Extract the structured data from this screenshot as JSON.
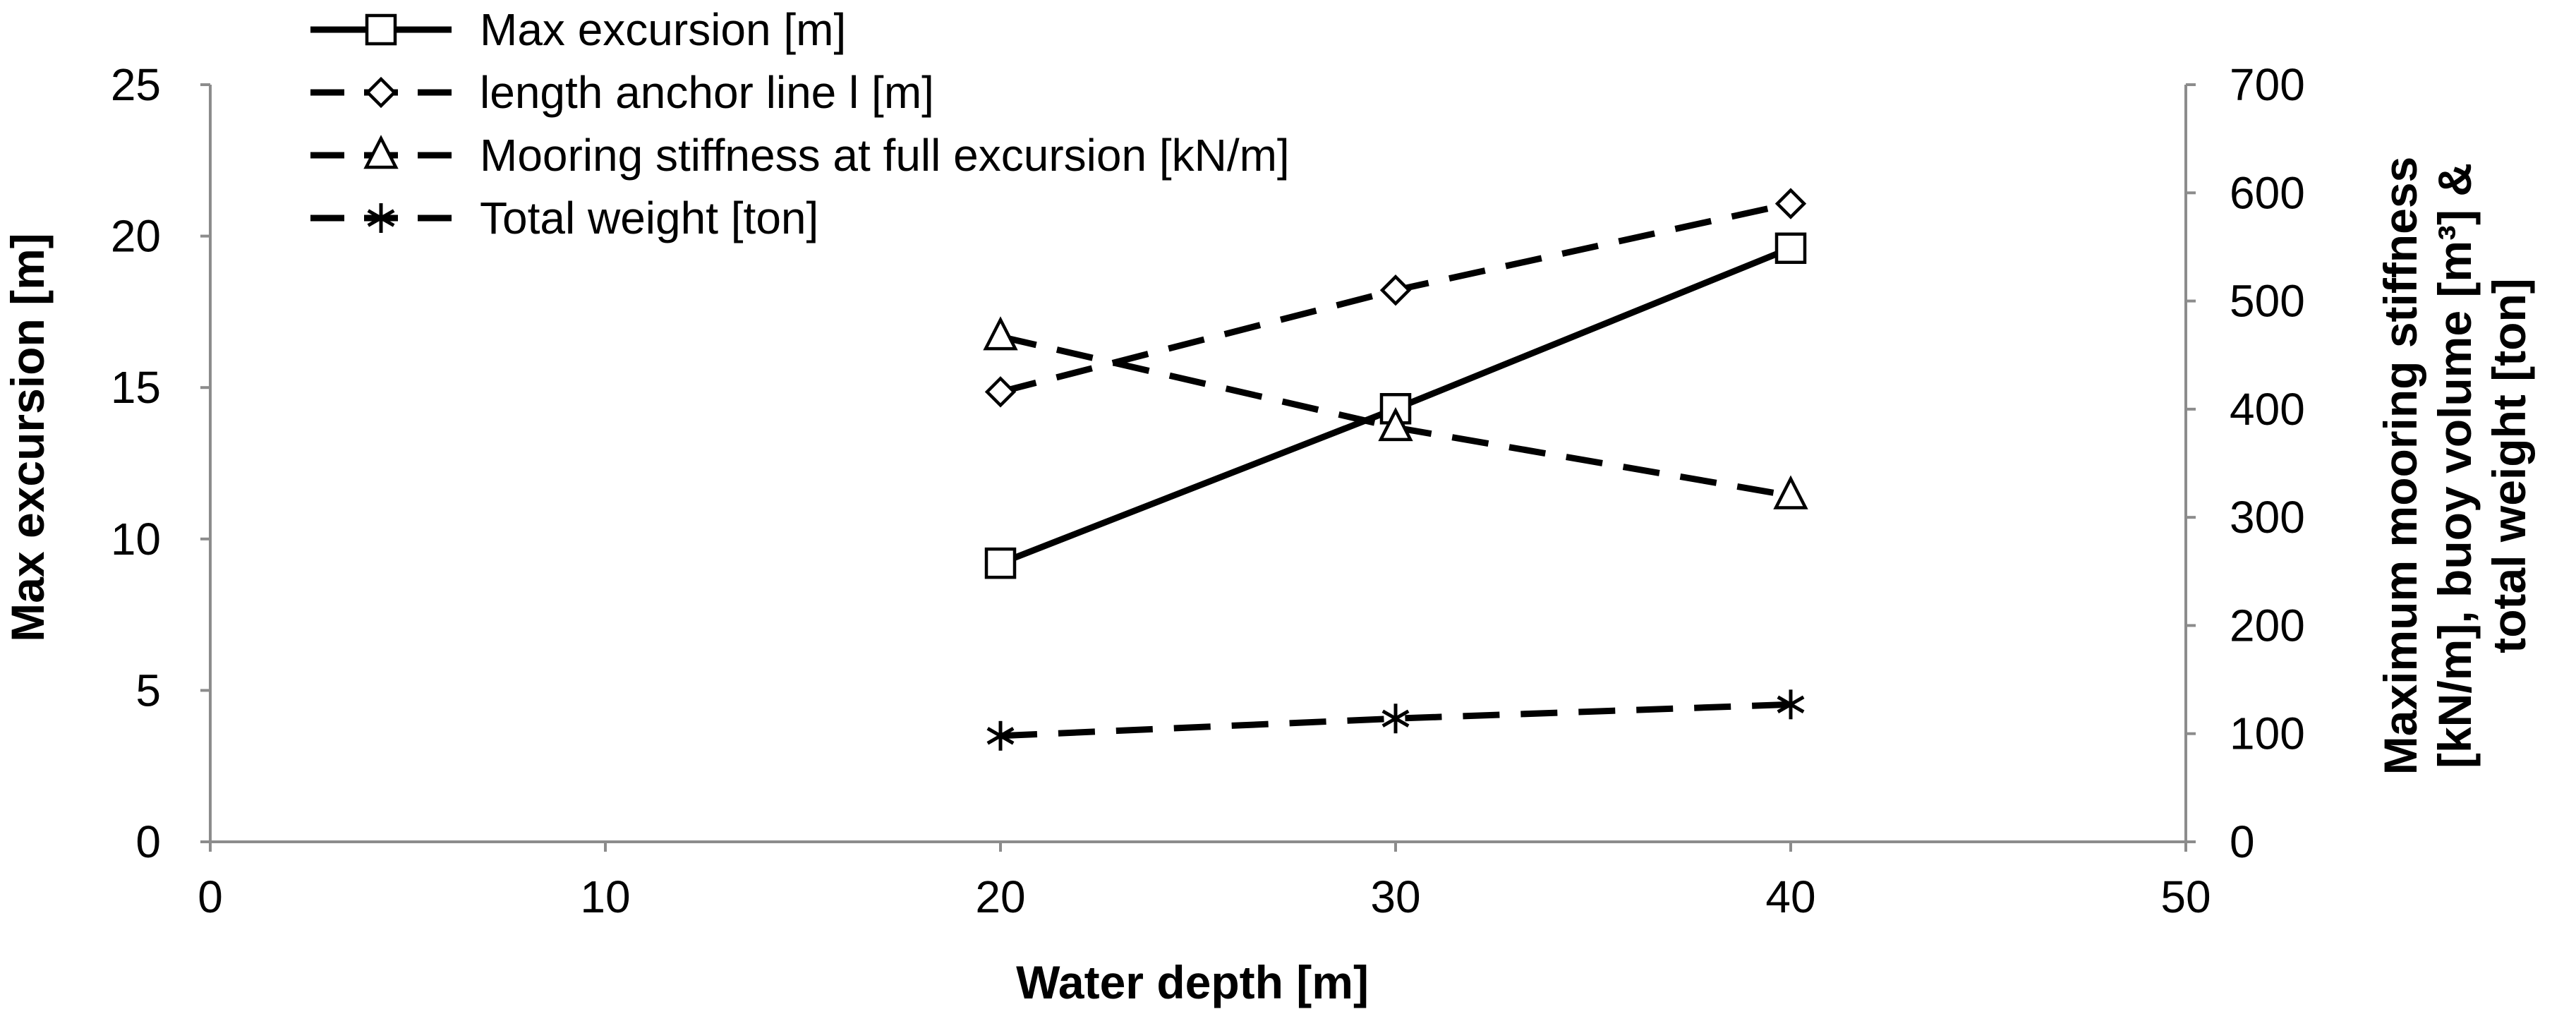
{
  "chart_data": {
    "type": "line",
    "x": [
      20,
      30,
      40
    ],
    "xlabel": "Water depth [m]",
    "xlim": [
      0,
      50
    ],
    "x_ticks": [
      0,
      10,
      20,
      30,
      40,
      50
    ],
    "ylabel_left": "Max excursion [m]",
    "ylim_left": [
      0,
      25
    ],
    "y_ticks_left": [
      0,
      5,
      10,
      15,
      20,
      25
    ],
    "ylabel_right_lines": [
      "Maximum mooring stiffness",
      "[kN/m], buoy volume [m³] &",
      "total weight [ton]"
    ],
    "ylim_right": [
      0,
      700
    ],
    "y_ticks_right": [
      0,
      100,
      200,
      300,
      400,
      500,
      600,
      700
    ],
    "grid": false,
    "legend_position": "top-left",
    "series": [
      {
        "name": "Max excursion [m]",
        "axis": "left",
        "values": [
          9.2,
          14.3,
          19.6
        ],
        "marker": "square",
        "dash": "solid"
      },
      {
        "name": "length anchor line l [m]",
        "axis": "right",
        "values": [
          416,
          510,
          590
        ],
        "marker": "diamond",
        "dash": "dashed"
      },
      {
        "name": "Mooring stiffness  at full excursion [kN/m]",
        "axis": "right",
        "values": [
          467,
          383,
          320
        ],
        "marker": "triangle",
        "dash": "dashed"
      },
      {
        "name": "Total weight [ton]",
        "axis": "right",
        "values": [
          98,
          114,
          127
        ],
        "marker": "asterisk",
        "dash": "dashed"
      }
    ]
  }
}
